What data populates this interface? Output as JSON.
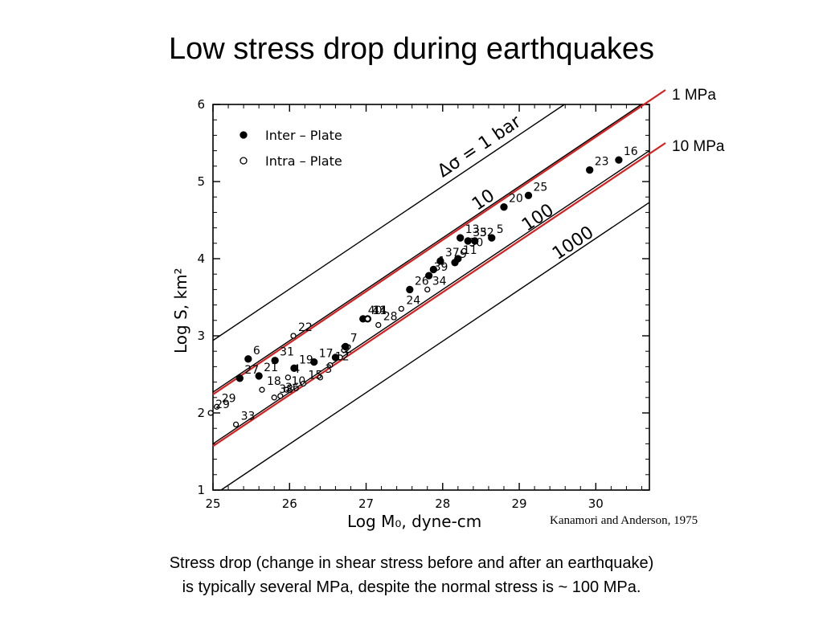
{
  "slide": {
    "title": "Low stress drop during earthquakes",
    "caption_line1": "Stress drop (change in shear stress before and after an earthquake)",
    "caption_line2": "is typically several MPa, despite the normal stress is ~ 100 MPa.",
    "citation": "Kanamori and Anderson, 1975",
    "label_1mpa": "1 MPa",
    "label_10mpa": "10 MPa",
    "overlay_color": "#d62020"
  },
  "chart_data": {
    "type": "scatter",
    "xlabel": "Log  M₀,  dyne-cm",
    "ylabel": "Log  S,  km²",
    "xlim": [
      25,
      30.7
    ],
    "ylim": [
      1,
      6
    ],
    "xticks": [
      "25",
      "26",
      "27",
      "28",
      "29",
      "30"
    ],
    "yticks": [
      "1",
      "2",
      "3",
      "4",
      "5",
      "6"
    ],
    "legend": {
      "placement": "top-left",
      "entries": [
        {
          "label": "Inter – Plate",
          "marker": "filled"
        },
        {
          "label": "Intra – Plate",
          "marker": "open"
        }
      ]
    },
    "reference_lines": [
      {
        "label": "Δσ = 1 bar",
        "points": [
          [
            25,
            2.94
          ],
          [
            30.7,
            6.74
          ]
        ]
      },
      {
        "label": "10",
        "points": [
          [
            25,
            2.27
          ],
          [
            30.7,
            6.07
          ]
        ]
      },
      {
        "label": "100",
        "points": [
          [
            25,
            1.6
          ],
          [
            30.7,
            5.4
          ]
        ]
      },
      {
        "label": "1000",
        "points": [
          [
            25,
            0.93
          ],
          [
            30.7,
            4.73
          ]
        ]
      }
    ],
    "overlay_lines": [
      {
        "label": "1 MPa",
        "points": [
          [
            25,
            2.24
          ],
          [
            30.7,
            6.04
          ]
        ]
      },
      {
        "label": "10 MPa",
        "points": [
          [
            25,
            1.57
          ],
          [
            30.7,
            5.37
          ]
        ]
      }
    ],
    "series": [
      {
        "name": "Inter – Plate",
        "points": [
          {
            "id": "16",
            "x": 30.3,
            "y": 5.28
          },
          {
            "id": "23",
            "x": 29.92,
            "y": 5.15
          },
          {
            "id": "25",
            "x": 29.12,
            "y": 4.82
          },
          {
            "id": "20",
            "x": 28.8,
            "y": 4.67
          },
          {
            "id": "5",
            "x": 28.64,
            "y": 4.27
          },
          {
            "id": "13",
            "x": 28.23,
            "y": 4.27
          },
          {
            "id": "32",
            "x": 28.42,
            "y": 4.23
          },
          {
            "id": "35",
            "x": 28.33,
            "y": 4.23
          },
          {
            "id": "37",
            "x": 27.97,
            "y": 3.97
          },
          {
            "id": "1",
            "x": 27.88,
            "y": 3.86
          },
          {
            "id": "9",
            "x": 28.16,
            "y": 3.95
          },
          {
            "id": "11",
            "x": 28.2,
            "y": 4.0
          },
          {
            "id": "39",
            "x": 27.82,
            "y": 3.78
          },
          {
            "id": "26",
            "x": 27.57,
            "y": 3.6
          },
          {
            "id": "41",
            "x": 27.02,
            "y": 3.22
          },
          {
            "id": "40",
            "x": 26.96,
            "y": 3.22
          },
          {
            "id": "7",
            "x": 26.73,
            "y": 2.86
          },
          {
            "id": "8",
            "x": 26.6,
            "y": 2.72
          },
          {
            "id": "17",
            "x": 26.32,
            "y": 2.66
          },
          {
            "id": "19",
            "x": 26.06,
            "y": 2.58
          },
          {
            "id": "31",
            "x": 25.81,
            "y": 2.68
          },
          {
            "id": "6",
            "x": 25.46,
            "y": 2.7
          },
          {
            "id": "21",
            "x": 25.6,
            "y": 2.48
          },
          {
            "id": "27",
            "x": 25.35,
            "y": 2.45
          }
        ]
      },
      {
        "name": "Intra – Plate",
        "points": [
          {
            "id": "30",
            "x": 28.28,
            "y": 4.1
          },
          {
            "id": "34",
            "x": 27.8,
            "y": 3.6
          },
          {
            "id": "24",
            "x": 27.46,
            "y": 3.35
          },
          {
            "id": "14",
            "x": 27.02,
            "y": 3.22
          },
          {
            "id": "28",
            "x": 27.16,
            "y": 3.14
          },
          {
            "id": "22",
            "x": 26.05,
            "y": 3.0
          },
          {
            "id": "2",
            "x": 26.66,
            "y": 2.72
          },
          {
            "id": "12",
            "x": 26.53,
            "y": 2.62
          },
          {
            "id": "3",
            "x": 26.4,
            "y": 2.46
          },
          {
            "id": "15",
            "x": 26.18,
            "y": 2.38
          },
          {
            "id": "4",
            "x": 25.98,
            "y": 2.46
          },
          {
            "id": "10",
            "x": 25.96,
            "y": 2.3
          },
          {
            "id": "36",
            "x": 25.88,
            "y": 2.22
          },
          {
            "id": "18",
            "x": 25.64,
            "y": 2.3
          },
          {
            "id": "38",
            "x": 25.8,
            "y": 2.2
          },
          {
            "id": "29",
            "x": 25.05,
            "y": 2.08
          },
          {
            "id": "33",
            "x": 25.3,
            "y": 1.85
          },
          {
            "id": "29b",
            "x": 24.97,
            "y": 2.0
          }
        ]
      }
    ]
  }
}
